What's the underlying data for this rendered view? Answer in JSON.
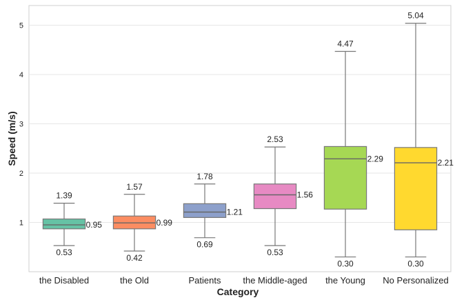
{
  "chart_data": {
    "type": "box",
    "xlabel": "Category",
    "ylabel": "Speed (m/s)",
    "ylim": [
      0,
      5.4
    ],
    "yticks": [
      1,
      2,
      3,
      4,
      5
    ],
    "grid": "horizontal",
    "categories": [
      "the Disabled",
      "the Old",
      "Patients",
      "the Middle-aged",
      "the Young",
      "No Personalized"
    ],
    "boxes": [
      {
        "category": "the Disabled",
        "min": 0.53,
        "q1": 0.87,
        "median": 0.95,
        "q3": 1.07,
        "max": 1.39,
        "color": "#66c2a5",
        "labels": {
          "max": "1.39",
          "median": "0.95",
          "min": "0.53"
        }
      },
      {
        "category": "the Old",
        "min": 0.42,
        "q1": 0.87,
        "median": 0.99,
        "q3": 1.13,
        "max": 1.57,
        "color": "#fc8d62",
        "labels": {
          "max": "1.57",
          "median": "0.99",
          "min": "0.42"
        }
      },
      {
        "category": "Patients",
        "min": 0.69,
        "q1": 1.1,
        "median": 1.21,
        "q3": 1.38,
        "max": 1.78,
        "color": "#8da0cb",
        "labels": {
          "max": "1.78",
          "median": "1.21",
          "min": "0.69"
        }
      },
      {
        "category": "the Middle-aged",
        "min": 0.53,
        "q1": 1.28,
        "median": 1.56,
        "q3": 1.78,
        "max": 2.53,
        "color": "#e78ac3",
        "labels": {
          "max": "2.53",
          "median": "1.56",
          "min": "0.53"
        }
      },
      {
        "category": "the Young",
        "min": 0.3,
        "q1": 1.27,
        "median": 2.29,
        "q3": 2.54,
        "max": 4.47,
        "color": "#a6d854",
        "labels": {
          "max": "4.47",
          "median": "2.29",
          "min": "0.30"
        }
      },
      {
        "category": "No Personalized",
        "min": 0.3,
        "q1": 0.85,
        "median": 2.21,
        "q3": 2.52,
        "max": 5.04,
        "color": "#ffd92f",
        "labels": {
          "max": "5.04",
          "median": "2.21",
          "min": "0.30"
        }
      }
    ]
  }
}
